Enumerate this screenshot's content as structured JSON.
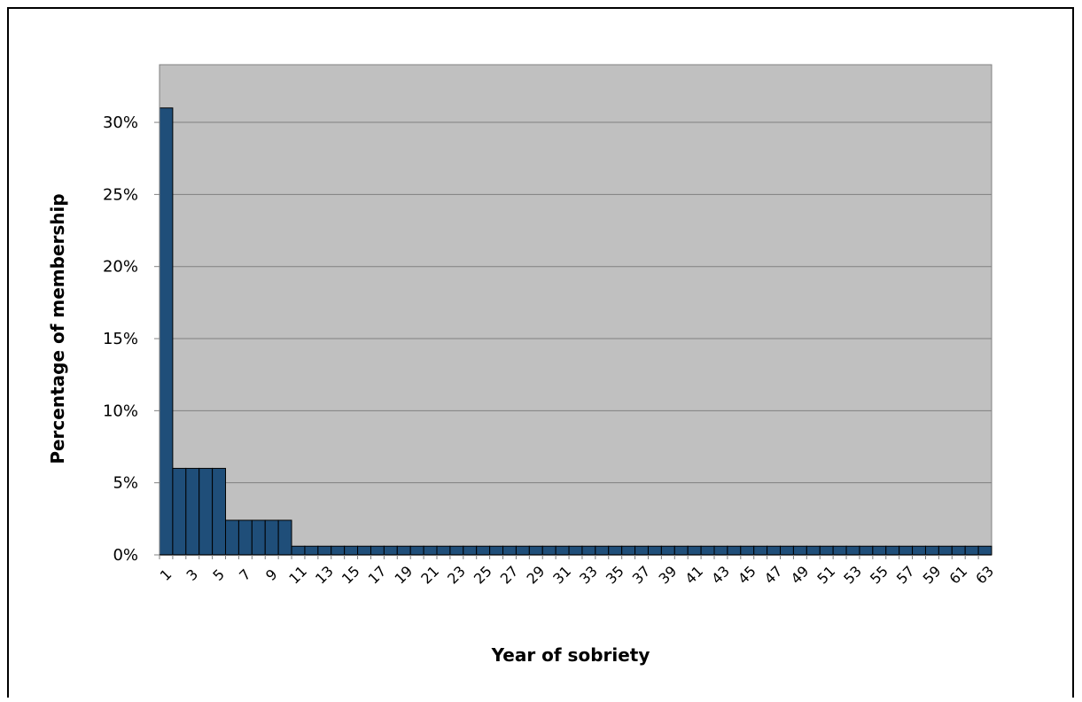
{
  "chart_data": {
    "type": "bar",
    "title": "",
    "xlabel": "Year of sobriety",
    "ylabel": "Percentage of membership",
    "ylim": [
      0,
      0.34
    ],
    "yticks": [
      0,
      0.05,
      0.1,
      0.15,
      0.2,
      0.25,
      0.3
    ],
    "ytick_labels": [
      "0%",
      "5%",
      "10%",
      "15%",
      "20%",
      "25%",
      "30%"
    ],
    "grid": true,
    "legend": "none",
    "colors": {
      "bar_fill": "#1f4e79",
      "bar_stroke": "#000000",
      "plot_background": "#c0c0c0",
      "gridline": "#808080"
    },
    "categories": [
      1,
      2,
      3,
      4,
      5,
      6,
      7,
      8,
      9,
      10,
      11,
      12,
      13,
      14,
      15,
      16,
      17,
      18,
      19,
      20,
      21,
      22,
      23,
      24,
      25,
      26,
      27,
      28,
      29,
      30,
      31,
      32,
      33,
      34,
      35,
      36,
      37,
      38,
      39,
      40,
      41,
      42,
      43,
      44,
      45,
      46,
      47,
      48,
      49,
      50,
      51,
      52,
      53,
      54,
      55,
      56,
      57,
      58,
      59,
      60,
      61,
      62,
      63
    ],
    "xtick_labels": [
      "1",
      "3",
      "5",
      "7",
      "9",
      "11",
      "13",
      "15",
      "17",
      "19",
      "21",
      "23",
      "25",
      "27",
      "29",
      "31",
      "33",
      "35",
      "37",
      "39",
      "41",
      "43",
      "45",
      "47",
      "49",
      "51",
      "53",
      "55",
      "57",
      "59",
      "61",
      "63"
    ],
    "values": [
      0.31,
      0.06,
      0.06,
      0.06,
      0.06,
      0.024,
      0.024,
      0.024,
      0.024,
      0.024,
      0.006,
      0.006,
      0.006,
      0.006,
      0.006,
      0.006,
      0.006,
      0.006,
      0.006,
      0.006,
      0.006,
      0.006,
      0.006,
      0.006,
      0.006,
      0.006,
      0.006,
      0.006,
      0.006,
      0.006,
      0.006,
      0.006,
      0.006,
      0.006,
      0.006,
      0.006,
      0.006,
      0.006,
      0.006,
      0.006,
      0.006,
      0.006,
      0.006,
      0.006,
      0.006,
      0.006,
      0.006,
      0.006,
      0.006,
      0.006,
      0.006,
      0.006,
      0.006,
      0.006,
      0.006,
      0.006,
      0.006,
      0.006,
      0.006,
      0.006,
      0.006,
      0.006,
      0.006
    ]
  }
}
